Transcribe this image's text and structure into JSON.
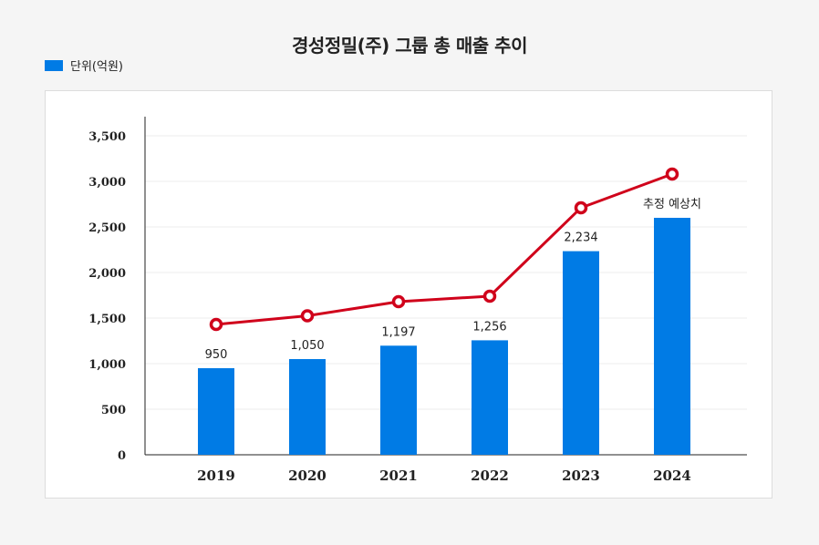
{
  "chart_data": {
    "type": "bar",
    "title": "경성정밀(주) 그룹 총 매출 추이",
    "legend": {
      "label": "단위(억원)",
      "placement": "top-left"
    },
    "categories": [
      "2019",
      "2020",
      "2021",
      "2022",
      "2023",
      "2024"
    ],
    "series": [
      {
        "kind": "bar",
        "values": [
          950,
          1050,
          1197,
          1256,
          2234,
          2600
        ],
        "data_labels": [
          "950",
          "1,050",
          "1,197",
          "1,256",
          "2,234",
          "추정 예상치"
        ],
        "color": "#007be5"
      },
      {
        "kind": "line",
        "values": [
          1430,
          1525,
          1680,
          1740,
          2710,
          3080
        ],
        "color": "#d0021b"
      }
    ],
    "ylim": [
      0,
      3700
    ],
    "yticks": [
      0,
      500,
      1000,
      1500,
      2000,
      2500,
      3000,
      3500
    ],
    "ytick_labels": [
      "0",
      "500",
      "1,000",
      "1,500",
      "2,000",
      "2,500",
      "3,000",
      "3,500"
    ],
    "grid": true
  }
}
